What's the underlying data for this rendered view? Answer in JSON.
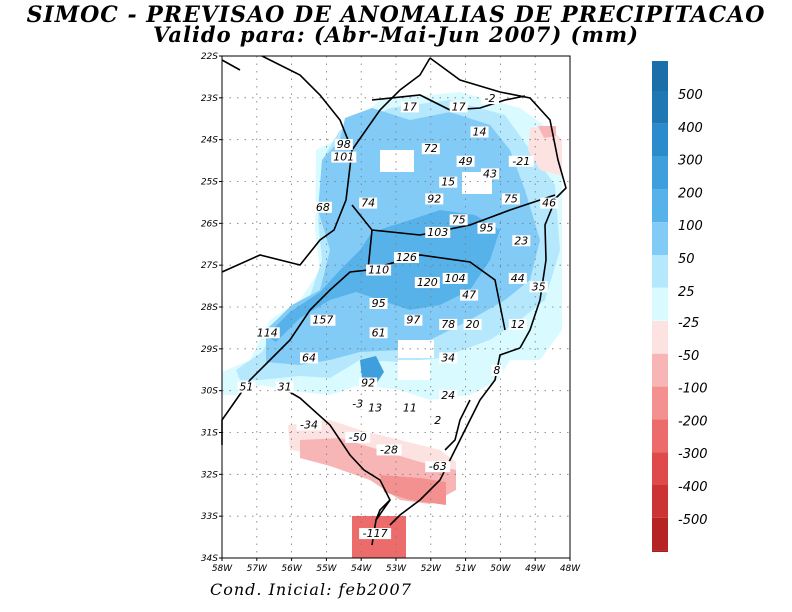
{
  "title": "SIMOC - PREVISAO DE ANOMALIAS DE PRECIPITACAO",
  "subtitle": "Valido para: (Abr-Mai-Jun 2007) (mm)",
  "footer": "Cond. Inicial: feb2007",
  "map": {
    "lon_range": [
      -58,
      -48
    ],
    "lat_range": [
      -34,
      -22
    ],
    "lon_ticks": [
      "58W",
      "57W",
      "56W",
      "55W",
      "54W",
      "53W",
      "52W",
      "51W",
      "50W",
      "49W",
      "48W"
    ],
    "lat_ticks": [
      "22S",
      "23S",
      "24S",
      "25S",
      "26S",
      "27S",
      "28S",
      "29S",
      "30S",
      "31S",
      "32S",
      "33S",
      "34S"
    ],
    "grid": "dotted"
  },
  "legend": {
    "positive": [
      {
        "label": "500",
        "color": "#1f78b4"
      },
      {
        "label": "400",
        "color": "#2b8ccd"
      },
      {
        "label": "300",
        "color": "#3f9fdc"
      },
      {
        "label": "200",
        "color": "#58b2ea"
      },
      {
        "label": "100",
        "color": "#83cbf7"
      },
      {
        "label": "50",
        "color": "#b6e8fd"
      },
      {
        "label": "25",
        "color": "#d9fbff"
      }
    ],
    "top_color": "#1a6fa8",
    "negative": [
      {
        "label": "-25",
        "color": "#fde2e2"
      },
      {
        "label": "-50",
        "color": "#f8b5b5"
      },
      {
        "label": "-100",
        "color": "#f39090"
      },
      {
        "label": "-200",
        "color": "#ec6b6b"
      },
      {
        "label": "-300",
        "color": "#df4a4a"
      },
      {
        "label": "-400",
        "color": "#cc3333"
      },
      {
        "label": "-500",
        "color": "#b52323"
      }
    ],
    "bottom_color": "#a81c1c"
  },
  "values": [
    {
      "lon": -52.6,
      "lat": -23.3,
      "label": "17"
    },
    {
      "lon": -51.2,
      "lat": -23.3,
      "label": "17"
    },
    {
      "lon": -50.3,
      "lat": -23.1,
      "label": "-2"
    },
    {
      "lon": -50.6,
      "lat": -23.9,
      "label": "14"
    },
    {
      "lon": -54.5,
      "lat": -24.2,
      "label": "98"
    },
    {
      "lon": -54.5,
      "lat": -24.5,
      "label": "101"
    },
    {
      "lon": -52.0,
      "lat": -24.3,
      "label": "72"
    },
    {
      "lon": -51.0,
      "lat": -24.6,
      "label": "49"
    },
    {
      "lon": -49.4,
      "lat": -24.6,
      "label": "-21"
    },
    {
      "lon": -50.3,
      "lat": -24.9,
      "label": "43"
    },
    {
      "lon": -51.5,
      "lat": -25.1,
      "label": "15"
    },
    {
      "lon": -55.1,
      "lat": -25.7,
      "label": "68"
    },
    {
      "lon": -53.8,
      "lat": -25.6,
      "label": "74"
    },
    {
      "lon": -51.9,
      "lat": -25.5,
      "label": "92"
    },
    {
      "lon": -49.7,
      "lat": -25.5,
      "label": "75"
    },
    {
      "lon": -48.6,
      "lat": -25.6,
      "label": "46"
    },
    {
      "lon": -51.2,
      "lat": -26.0,
      "label": "75"
    },
    {
      "lon": -50.4,
      "lat": -26.2,
      "label": "95"
    },
    {
      "lon": -51.8,
      "lat": -26.3,
      "label": "103"
    },
    {
      "lon": -49.4,
      "lat": -26.5,
      "label": "23"
    },
    {
      "lon": -52.7,
      "lat": -26.9,
      "label": "126"
    },
    {
      "lon": -53.5,
      "lat": -27.2,
      "label": "110"
    },
    {
      "lon": -52.1,
      "lat": -27.5,
      "label": "120"
    },
    {
      "lon": -51.3,
      "lat": -27.4,
      "label": "104"
    },
    {
      "lon": -49.5,
      "lat": -27.4,
      "label": "44"
    },
    {
      "lon": -48.9,
      "lat": -27.6,
      "label": "35"
    },
    {
      "lon": -50.9,
      "lat": -27.8,
      "label": "47"
    },
    {
      "lon": -53.5,
      "lat": -28.0,
      "label": "95"
    },
    {
      "lon": -56.7,
      "lat": -28.7,
      "label": "114"
    },
    {
      "lon": -55.1,
      "lat": -28.4,
      "label": "157"
    },
    {
      "lon": -53.5,
      "lat": -28.7,
      "label": "61"
    },
    {
      "lon": -52.5,
      "lat": -28.4,
      "label": "97"
    },
    {
      "lon": -51.5,
      "lat": -28.5,
      "label": "78"
    },
    {
      "lon": -50.8,
      "lat": -28.5,
      "label": "20"
    },
    {
      "lon": -49.5,
      "lat": -28.5,
      "label": "12"
    },
    {
      "lon": -55.5,
      "lat": -29.3,
      "label": "64"
    },
    {
      "lon": -51.5,
      "lat": -29.3,
      "label": "34"
    },
    {
      "lon": -53.8,
      "lat": -29.9,
      "label": "92"
    },
    {
      "lon": -50.1,
      "lat": -29.6,
      "label": "8"
    },
    {
      "lon": -57.3,
      "lat": -30.0,
      "label": "51"
    },
    {
      "lon": -56.2,
      "lat": -30.0,
      "label": "31"
    },
    {
      "lon": -51.5,
      "lat": -30.2,
      "label": "24"
    },
    {
      "lon": -54.1,
      "lat": -30.4,
      "label": "-3"
    },
    {
      "lon": -53.6,
      "lat": -30.5,
      "label": "13"
    },
    {
      "lon": -52.6,
      "lat": -30.5,
      "label": "11"
    },
    {
      "lon": -51.8,
      "lat": -30.8,
      "label": "2"
    },
    {
      "lon": -55.5,
      "lat": -30.9,
      "label": "-34"
    },
    {
      "lon": -54.1,
      "lat": -31.2,
      "label": "-50"
    },
    {
      "lon": -53.2,
      "lat": -31.5,
      "label": "-28"
    },
    {
      "lon": -51.8,
      "lat": -31.9,
      "label": "-63"
    },
    {
      "lon": -53.6,
      "lat": -33.5,
      "label": "-117"
    }
  ]
}
